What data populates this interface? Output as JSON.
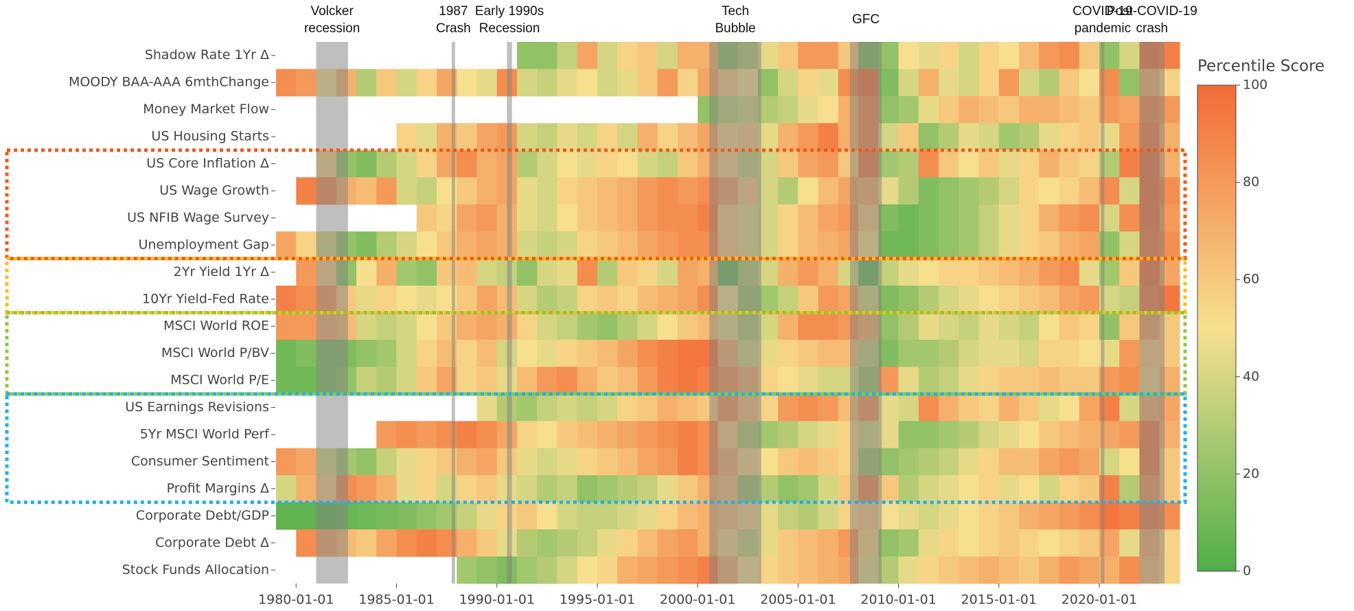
{
  "chart_data": {
    "type": "heatmap",
    "x": [
      "1979-01-01",
      "1980-01-01",
      "1981-01-01",
      "1982-01-01",
      "1983-01-01",
      "1984-01-01",
      "1985-01-01",
      "1986-01-01",
      "1987-01-01",
      "1988-01-01",
      "1989-01-01",
      "1990-01-01",
      "1991-01-01",
      "1992-01-01",
      "1993-01-01",
      "1994-01-01",
      "1995-01-01",
      "1996-01-01",
      "1997-01-01",
      "1998-01-01",
      "1999-01-01",
      "2000-01-01",
      "2001-01-01",
      "2002-01-01",
      "2003-01-01",
      "2004-01-01",
      "2005-01-01",
      "2006-01-01",
      "2007-01-01",
      "2008-01-01",
      "2009-01-01",
      "2010-01-01",
      "2011-01-01",
      "2012-01-01",
      "2013-01-01",
      "2014-01-01",
      "2015-01-01",
      "2016-01-01",
      "2017-01-01",
      "2018-01-01",
      "2019-01-01",
      "2020-01-01",
      "2021-01-01",
      "2022-01-01",
      "2023-01-01"
    ],
    "xlim": [
      "1979-01-01",
      "2024-01-01"
    ],
    "xticks": [
      "1980-01-01",
      "1985-01-01",
      "1990-01-01",
      "1995-01-01",
      "2000-01-01",
      "2005-01-01",
      "2010-01-01",
      "2015-01-01",
      "2020-01-01"
    ],
    "y": [
      "Shadow Rate 1Yr Δ",
      "MOODY BAA-AAA 6mthChange",
      "Money Market Flow",
      "US Housing Starts",
      "US Core Inflation Δ",
      "US Wage Growth",
      "US NFIB Wage Survey",
      "Unemployment Gap",
      "2Yr Yield 1Yr Δ",
      "10Yr Yield-Fed Rate",
      "MSCI World ROE",
      "MSCI World P/BV",
      "MSCI World P/E",
      "US Earnings Revisions",
      "5Yr MSCI World Perf",
      "Consumer Sentiment",
      "Profit Margins Δ",
      "Corporate Debt/GDP",
      "Corporate Debt Δ",
      "Stock Funds Allocation"
    ],
    "z": [
      [
        null,
        null,
        null,
        null,
        null,
        null,
        null,
        null,
        null,
        null,
        null,
        null,
        20,
        20,
        35,
        75,
        40,
        55,
        60,
        40,
        70,
        70,
        20,
        30,
        45,
        60,
        80,
        80,
        60,
        15,
        20,
        50,
        45,
        55,
        40,
        55,
        50,
        65,
        80,
        85,
        60,
        20,
        40,
        95,
        90
      ],
      [
        85,
        80,
        50,
        70,
        30,
        60,
        40,
        55,
        75,
        50,
        45,
        85,
        40,
        35,
        45,
        50,
        40,
        45,
        60,
        80,
        55,
        75,
        60,
        50,
        20,
        40,
        55,
        45,
        85,
        95,
        15,
        40,
        70,
        45,
        40,
        55,
        80,
        40,
        30,
        60,
        50,
        85,
        20,
        70,
        55
      ],
      [
        null,
        null,
        null,
        null,
        null,
        null,
        null,
        null,
        null,
        null,
        null,
        null,
        null,
        null,
        null,
        null,
        null,
        null,
        null,
        null,
        null,
        20,
        35,
        40,
        30,
        35,
        45,
        50,
        70,
        85,
        20,
        25,
        45,
        60,
        70,
        65,
        60,
        70,
        70,
        65,
        60,
        80,
        75,
        85,
        80
      ],
      [
        null,
        null,
        null,
        null,
        null,
        null,
        55,
        45,
        70,
        60,
        75,
        80,
        40,
        35,
        45,
        40,
        55,
        40,
        70,
        55,
        65,
        75,
        55,
        60,
        45,
        70,
        80,
        90,
        70,
        85,
        40,
        60,
        20,
        30,
        45,
        40,
        25,
        30,
        45,
        55,
        60,
        45,
        80,
        90,
        70
      ],
      [
        null,
        null,
        55,
        20,
        15,
        30,
        40,
        55,
        75,
        85,
        70,
        75,
        30,
        40,
        50,
        45,
        55,
        50,
        40,
        35,
        60,
        70,
        55,
        35,
        40,
        60,
        75,
        80,
        60,
        90,
        25,
        30,
        85,
        60,
        50,
        60,
        45,
        55,
        70,
        60,
        55,
        30,
        90,
        95,
        70
      ],
      [
        null,
        90,
        85,
        70,
        65,
        80,
        40,
        35,
        50,
        60,
        70,
        75,
        45,
        40,
        55,
        60,
        65,
        70,
        80,
        85,
        80,
        85,
        75,
        60,
        40,
        30,
        50,
        65,
        75,
        70,
        45,
        30,
        15,
        20,
        25,
        30,
        40,
        55,
        50,
        55,
        65,
        85,
        40,
        95,
        85
      ],
      [
        null,
        null,
        null,
        null,
        null,
        null,
        null,
        60,
        55,
        75,
        80,
        70,
        45,
        40,
        50,
        60,
        65,
        70,
        80,
        85,
        85,
        90,
        60,
        45,
        40,
        55,
        65,
        75,
        80,
        60,
        15,
        10,
        15,
        20,
        25,
        35,
        45,
        55,
        70,
        80,
        85,
        40,
        85,
        95,
        80
      ],
      [
        75,
        55,
        40,
        20,
        15,
        30,
        40,
        50,
        60,
        70,
        75,
        70,
        40,
        35,
        40,
        55,
        60,
        65,
        75,
        80,
        85,
        85,
        60,
        45,
        40,
        55,
        65,
        70,
        75,
        50,
        10,
        10,
        15,
        20,
        25,
        35,
        45,
        55,
        60,
        70,
        75,
        20,
        40,
        90,
        85
      ],
      [
        null,
        80,
        60,
        20,
        50,
        70,
        25,
        20,
        60,
        65,
        40,
        35,
        20,
        40,
        45,
        85,
        30,
        60,
        55,
        40,
        75,
        70,
        10,
        30,
        40,
        70,
        80,
        70,
        40,
        10,
        35,
        45,
        50,
        55,
        55,
        60,
        65,
        70,
        80,
        85,
        45,
        25,
        60,
        95,
        75
      ],
      [
        90,
        85,
        80,
        60,
        45,
        55,
        50,
        45,
        50,
        60,
        75,
        65,
        40,
        30,
        35,
        55,
        60,
        55,
        65,
        70,
        75,
        85,
        50,
        25,
        25,
        35,
        60,
        80,
        75,
        40,
        15,
        20,
        30,
        40,
        45,
        50,
        55,
        60,
        65,
        75,
        80,
        40,
        35,
        90,
        95
      ],
      [
        80,
        80,
        70,
        65,
        40,
        35,
        40,
        50,
        60,
        70,
        75,
        70,
        55,
        40,
        35,
        25,
        20,
        30,
        40,
        50,
        60,
        65,
        45,
        30,
        40,
        70,
        85,
        85,
        80,
        70,
        20,
        30,
        45,
        40,
        35,
        45,
        40,
        35,
        50,
        60,
        55,
        20,
        60,
        75,
        60
      ],
      [
        10,
        15,
        15,
        15,
        20,
        25,
        40,
        55,
        65,
        55,
        65,
        40,
        50,
        45,
        55,
        60,
        65,
        75,
        85,
        90,
        95,
        95,
        70,
        40,
        45,
        55,
        60,
        65,
        65,
        35,
        15,
        25,
        25,
        30,
        40,
        45,
        45,
        40,
        55,
        55,
        50,
        45,
        80,
        60,
        60
      ],
      [
        10,
        10,
        15,
        20,
        35,
        30,
        40,
        60,
        75,
        55,
        60,
        45,
        65,
        80,
        85,
        70,
        60,
        65,
        80,
        90,
        95,
        90,
        80,
        70,
        55,
        50,
        45,
        40,
        40,
        25,
        80,
        45,
        30,
        35,
        45,
        55,
        60,
        60,
        65,
        60,
        60,
        80,
        85,
        55,
        70
      ],
      [
        null,
        null,
        null,
        null,
        null,
        null,
        null,
        null,
        null,
        null,
        45,
        30,
        25,
        35,
        40,
        35,
        40,
        55,
        60,
        70,
        65,
        60,
        80,
        65,
        55,
        80,
        85,
        80,
        65,
        80,
        45,
        40,
        85,
        70,
        60,
        55,
        70,
        60,
        45,
        50,
        75,
        90,
        40,
        70,
        75
      ],
      [
        null,
        null,
        null,
        null,
        null,
        80,
        85,
        80,
        85,
        90,
        85,
        75,
        55,
        50,
        60,
        65,
        70,
        75,
        80,
        85,
        90,
        85,
        60,
        30,
        25,
        30,
        40,
        45,
        55,
        40,
        45,
        20,
        20,
        25,
        30,
        40,
        45,
        50,
        60,
        65,
        70,
        75,
        80,
        90,
        70
      ],
      [
        80,
        75,
        40,
        25,
        20,
        35,
        45,
        55,
        60,
        70,
        75,
        60,
        45,
        40,
        45,
        55,
        60,
        65,
        75,
        80,
        90,
        85,
        70,
        55,
        50,
        60,
        65,
        60,
        55,
        25,
        20,
        25,
        30,
        35,
        45,
        55,
        65,
        65,
        75,
        80,
        75,
        40,
        50,
        90,
        60
      ],
      [
        40,
        70,
        60,
        85,
        80,
        70,
        45,
        55,
        40,
        55,
        60,
        45,
        40,
        30,
        35,
        20,
        25,
        30,
        35,
        45,
        60,
        70,
        65,
        25,
        30,
        20,
        25,
        40,
        60,
        85,
        60,
        30,
        40,
        45,
        50,
        55,
        45,
        50,
        40,
        55,
        60,
        90,
        30,
        80,
        60
      ],
      [
        5,
        5,
        5,
        8,
        10,
        12,
        15,
        20,
        25,
        35,
        45,
        55,
        60,
        50,
        40,
        35,
        35,
        40,
        45,
        55,
        65,
        70,
        65,
        55,
        45,
        35,
        30,
        40,
        55,
        60,
        50,
        45,
        40,
        45,
        50,
        55,
        60,
        70,
        75,
        80,
        85,
        95,
        90,
        90,
        85
      ],
      [
        null,
        85,
        75,
        65,
        60,
        75,
        85,
        90,
        85,
        70,
        60,
        45,
        30,
        25,
        30,
        35,
        45,
        55,
        65,
        75,
        80,
        70,
        55,
        35,
        45,
        60,
        65,
        70,
        80,
        55,
        20,
        25,
        45,
        55,
        50,
        55,
        60,
        55,
        50,
        55,
        60,
        75,
        45,
        70,
        55
      ],
      [
        null,
        null,
        null,
        null,
        null,
        null,
        null,
        null,
        null,
        25,
        20,
        15,
        25,
        30,
        40,
        50,
        55,
        70,
        75,
        80,
        85,
        90,
        70,
        50,
        55,
        60,
        65,
        70,
        75,
        45,
        30,
        45,
        55,
        60,
        65,
        70,
        65,
        60,
        70,
        80,
        75,
        70,
        85,
        65,
        55
      ]
    ],
    "colorscale": [
      "#4fae48",
      "#f7df90",
      "#f26a35"
    ],
    "colorbar": {
      "title": "Percentile Score",
      "zlim": [
        0,
        100
      ],
      "ticks": [
        0,
        20,
        40,
        60,
        80,
        100
      ]
    },
    "shading": [
      {
        "label": [
          "Volcker",
          "recession"
        ],
        "x0": "1981-01-01",
        "x1": "1982-08-01"
      },
      {
        "label": [
          "1987",
          "Crash"
        ],
        "x0": "1987-10-01",
        "x1": "1987-12-01"
      },
      {
        "label": [
          "Early 1990s",
          "Recession"
        ],
        "x0": "1990-07-01",
        "x1": "1990-10-01"
      },
      {
        "label": [
          "Tech",
          "Bubble"
        ],
        "x0": "2000-08-01",
        "x1": "2003-03-01"
      },
      {
        "label": [
          "GFC"
        ],
        "x0": "2007-08-01",
        "x1": "2009-03-01"
      },
      {
        "label": [
          "COVID-19",
          "pandemic"
        ],
        "x0": "2020-02-01",
        "x1": "2020-04-01"
      },
      {
        "label": [
          "Post-COVID-19",
          "crash"
        ],
        "x0": "2022-01-01",
        "x1": "2023-04-01"
      }
    ],
    "shading_color": "#808080"
  }
}
